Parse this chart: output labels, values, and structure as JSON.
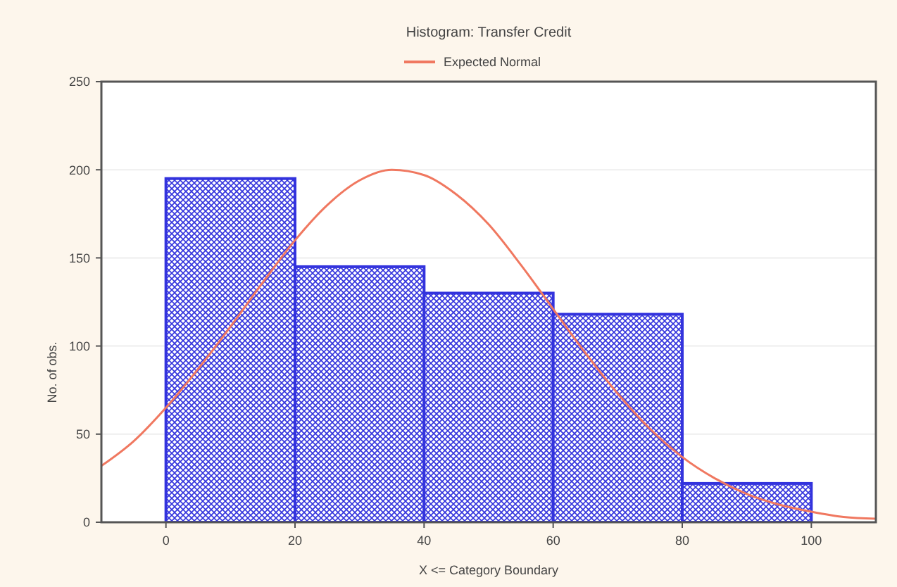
{
  "chart_data": {
    "type": "histogram",
    "title": "Histogram: Transfer Credit",
    "xlabel": "X <= Category Boundary",
    "ylabel": "No. of obs.",
    "bins": [
      0,
      20,
      40,
      60,
      80,
      100
    ],
    "values": [
      195,
      145,
      130,
      118,
      22
    ],
    "color": "#3333dd",
    "series": [
      {
        "name": "Expected Normal",
        "type": "line",
        "color": "#f07860",
        "x": [
          -10,
          -5,
          0,
          5,
          10,
          15,
          20,
          25,
          30,
          35,
          40,
          45,
          50,
          55,
          60,
          65,
          70,
          75,
          80,
          85,
          90,
          95,
          100,
          105,
          110
        ],
        "values": [
          32,
          46,
          65,
          87,
          111,
          136,
          160,
          180,
          194,
          200,
          197,
          186,
          169,
          146,
          121,
          96,
          73,
          53,
          37,
          25,
          16,
          10,
          6,
          3,
          2
        ]
      }
    ],
    "xlim": [
      -10,
      110
    ],
    "xticks": [
      0,
      20,
      40,
      60,
      80,
      100
    ],
    "ylim": [
      0,
      250
    ],
    "yticks": [
      0,
      50,
      100,
      150,
      200,
      250
    ],
    "grid": "y",
    "legend": "top",
    "marker": "none",
    "line_style": "solid"
  }
}
